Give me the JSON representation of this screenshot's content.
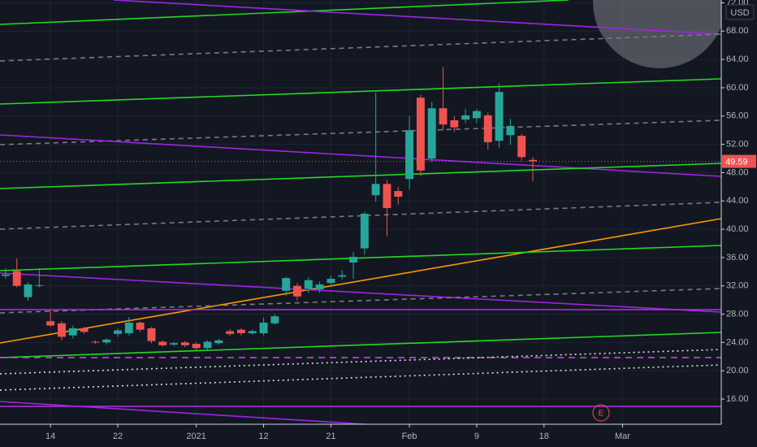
{
  "chart_data": {
    "type": "candlestick",
    "currency": "USD",
    "x": [
      0,
      1,
      2,
      3,
      4,
      5,
      6,
      7,
      8,
      9,
      10,
      11,
      12,
      13,
      14,
      15,
      16,
      17,
      18,
      19,
      20,
      21,
      22,
      23,
      24,
      25,
      26,
      27,
      28,
      29,
      30,
      31,
      32,
      33,
      34,
      35,
      36,
      37,
      38,
      39,
      40,
      41,
      42,
      43,
      44,
      45,
      46,
      47
    ],
    "open": [
      33.4,
      34.1,
      30.4,
      32.0,
      27.0,
      26.7,
      25.0,
      26.0,
      24.1,
      24.0,
      25.2,
      25.3,
      26.8,
      26.0,
      24.1,
      23.7,
      24.0,
      23.8,
      23.2,
      23.9,
      25.6,
      25.8,
      25.3,
      25.3,
      26.7,
      31.3,
      32.0,
      31.6,
      31.5,
      32.4,
      33.3,
      35.3,
      37.3,
      44.8,
      46.4,
      45.4,
      47.1,
      58.6,
      50.0,
      57.1,
      55.4,
      55.5,
      55.7,
      56.1,
      52.5,
      53.3,
      53.2,
      49.8
    ],
    "high": [
      34.5,
      35.9,
      32.5,
      34.5,
      28.6,
      27.0,
      26.4,
      26.2,
      24.3,
      24.6,
      26.0,
      27.6,
      27.0,
      26.2,
      24.3,
      24.1,
      24.2,
      24.0,
      24.3,
      24.5,
      25.9,
      26.0,
      25.8,
      27.5,
      28.0,
      33.3,
      32.4,
      33.2,
      32.6,
      33.4,
      34.2,
      36.8,
      42.5,
      59.3,
      47.0,
      46.0,
      56.0,
      59.0,
      58.0,
      62.9,
      56.0,
      57.0,
      57.0,
      56.5,
      60.6,
      55.6,
      53.5,
      50.2
    ],
    "low": [
      33.0,
      31.8,
      29.9,
      31.8,
      26.2,
      24.3,
      24.6,
      25.2,
      23.8,
      23.7,
      24.8,
      25.0,
      25.5,
      23.9,
      23.4,
      23.5,
      23.3,
      22.9,
      22.9,
      23.7,
      24.9,
      25.0,
      25.1,
      25.0,
      26.5,
      30.6,
      29.9,
      31.0,
      31.0,
      32.2,
      32.9,
      33.0,
      36.4,
      43.9,
      39.0,
      43.5,
      45.6,
      47.5,
      49.5,
      54.0,
      53.8,
      55.0,
      55.0,
      51.3,
      51.5,
      51.9,
      49.7,
      46.8
    ],
    "close": [
      33.6,
      32.0,
      32.2,
      32.1,
      26.4,
      24.8,
      26.0,
      25.5,
      24.0,
      24.4,
      25.7,
      26.8,
      25.8,
      24.2,
      23.6,
      23.9,
      23.6,
      23.2,
      24.1,
      24.3,
      25.2,
      25.3,
      25.6,
      26.8,
      27.7,
      33.1,
      30.5,
      32.8,
      32.2,
      33.0,
      33.5,
      36.1,
      42.2,
      46.4,
      43.0,
      44.6,
      54.0,
      48.3,
      57.1,
      54.8,
      54.4,
      56.1,
      56.7,
      52.3,
      59.4,
      54.6,
      50.2,
      49.59
    ],
    "up_color": "#26a69a",
    "down_color": "#ef5350",
    "last_price": 49.59,
    "xlim": [
      -0.5,
      63.8
    ],
    "xticks": [
      {
        "value": 4,
        "label": "14"
      },
      {
        "value": 10,
        "label": "22"
      },
      {
        "value": 17,
        "label": "2021"
      },
      {
        "value": 23,
        "label": "12"
      },
      {
        "value": 29,
        "label": "21"
      },
      {
        "value": 36,
        "label": "Feb"
      },
      {
        "value": 42,
        "label": "9"
      },
      {
        "value": 48,
        "label": "18"
      },
      {
        "value": 55,
        "label": "Mar"
      }
    ],
    "ylim": [
      12.44,
      72.4
    ],
    "yticks": [
      {
        "value": 16,
        "label": "16.00"
      },
      {
        "value": 20,
        "label": "20.00"
      },
      {
        "value": 24,
        "label": "24.00"
      },
      {
        "value": 28,
        "label": "28.00"
      },
      {
        "value": 32,
        "label": "32.00"
      },
      {
        "value": 36,
        "label": "36.00"
      },
      {
        "value": 40,
        "label": "40.00"
      },
      {
        "value": 44,
        "label": "44.00"
      },
      {
        "value": 48,
        "label": "48.00"
      },
      {
        "value": 52,
        "label": "52.00"
      },
      {
        "value": 56,
        "label": "56.00"
      },
      {
        "value": 60,
        "label": "60.00"
      },
      {
        "value": 64,
        "label": "64.00"
      },
      {
        "value": 68,
        "label": "68.00"
      },
      {
        "value": 72,
        "label": "72.00"
      }
    ],
    "grid": true,
    "event_marker": "E"
  }
}
